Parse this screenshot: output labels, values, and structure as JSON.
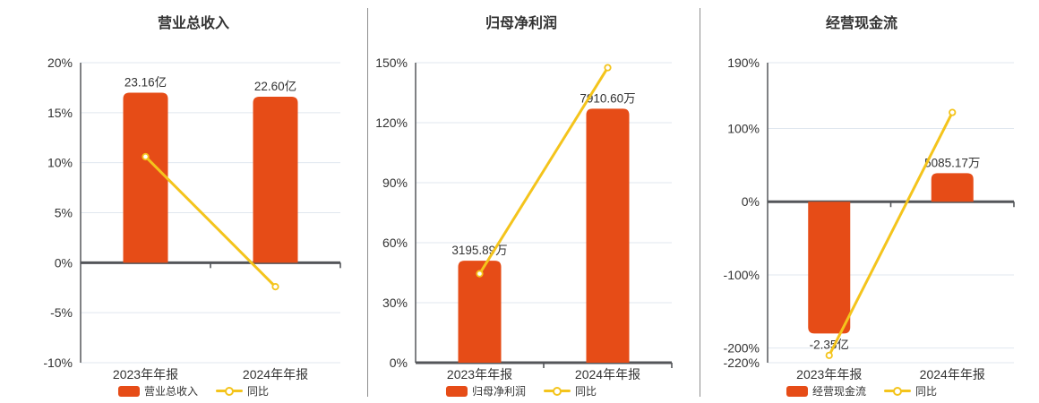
{
  "colors": {
    "background": "#ffffff",
    "bar": "#e64c17",
    "line": "#f4c41c",
    "grid": "#e0e7ef",
    "axis": "#606266",
    "zero_line": "#54565a",
    "text": "#333333",
    "separator": "#8f8f8f"
  },
  "chart_data": [
    {
      "type": "bar+line",
      "title": "营业总收入",
      "categories": [
        "2023年年报",
        "2024年年报"
      ],
      "bar_series": {
        "name": "营业总收入",
        "labels": [
          "23.16亿",
          "22.60亿"
        ],
        "heights_in_axis_pct": [
          17.0,
          16.6
        ]
      },
      "line_series": {
        "name": "同比",
        "values_pct": [
          10.6,
          -2.4
        ]
      },
      "y_axis": {
        "min": -10,
        "max": 20,
        "tick_values": [
          20,
          15,
          10,
          5,
          0,
          -5,
          -10
        ],
        "tick_labels": [
          "20%",
          "15%",
          "10%",
          "5%",
          "0%",
          "-5%",
          "-10%"
        ]
      },
      "legend": [
        "营业总收入",
        "同比"
      ]
    },
    {
      "type": "bar+line",
      "title": "归母净利润",
      "categories": [
        "2023年年报",
        "2024年年报"
      ],
      "bar_series": {
        "name": "归母净利润",
        "labels": [
          "3195.89万",
          "7910.60万"
        ],
        "heights_in_axis_pct": [
          51.0,
          127.0
        ]
      },
      "line_series": {
        "name": "同比",
        "values_pct": [
          44.5,
          147.5
        ]
      },
      "y_axis": {
        "min": 0,
        "max": 150,
        "tick_values": [
          150,
          120,
          90,
          60,
          30,
          0
        ],
        "tick_labels": [
          "150%",
          "120%",
          "90%",
          "60%",
          "30%",
          "0%"
        ]
      },
      "legend": [
        "归母净利润",
        "同比"
      ]
    },
    {
      "type": "bar+line",
      "title": "经营现金流",
      "categories": [
        "2023年年报",
        "2024年年报"
      ],
      "bar_series": {
        "name": "经营现金流",
        "labels": [
          "-2.35亿",
          "5085.17万"
        ],
        "heights_in_axis_pct": [
          -180.0,
          39.0
        ]
      },
      "line_series": {
        "name": "同比",
        "values_pct": [
          -210.0,
          122.0
        ]
      },
      "y_axis": {
        "min": -220,
        "max": 190,
        "tick_values": [
          190,
          100,
          0,
          -100,
          -200,
          -220
        ],
        "tick_labels": [
          "190%",
          "100%",
          "0%",
          "-100%",
          "-200%",
          "-220%"
        ]
      },
      "legend": [
        "经营现金流",
        "同比"
      ]
    }
  ]
}
